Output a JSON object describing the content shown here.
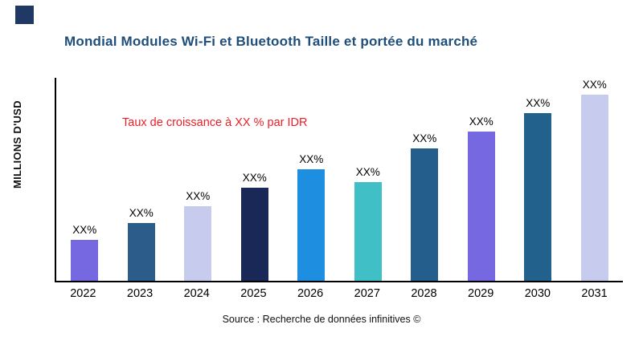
{
  "logo": {
    "color": "#1f3864"
  },
  "header": {
    "title": "Mondial Modules Wi-Fi et Bluetooth Taille et portée du marché",
    "title_color": "#1f4e79"
  },
  "annotation": {
    "text": "Taux de croissance à XX % par IDR",
    "color": "#ee1c25"
  },
  "axis": {
    "y_label": "MILLIONS D'USD"
  },
  "footer": {
    "source": "Source : Recherche de données infinitives ©"
  },
  "chart_data": {
    "type": "bar",
    "title": "Mondial Modules Wi-Fi et Bluetooth Taille et portée du marché",
    "xlabel": "",
    "ylabel": "MILLIONS D'USD",
    "categories": [
      "2022",
      "2023",
      "2024",
      "2025",
      "2026",
      "2027",
      "2028",
      "2029",
      "2030",
      "2031"
    ],
    "values": [
      22,
      31,
      40,
      50,
      60,
      53,
      71,
      80,
      90,
      100
    ],
    "values_note": "relative heights, max bar = 100; no numeric y-axis ticks shown",
    "bar_labels": [
      "XX%",
      "XX%",
      "XX%",
      "XX%",
      "XX%",
      "XX%",
      "XX%",
      "XX%",
      "XX%",
      "XX%"
    ],
    "bar_colors": [
      "#7668e0",
      "#2b5c8a",
      "#c7ccee",
      "#1a2858",
      "#1e8fe0",
      "#41bfc7",
      "#235e8c",
      "#7668e0",
      "#21618c",
      "#c7ccee"
    ],
    "ylim": [
      0,
      100
    ],
    "grid": false,
    "legend": false,
    "annotation": "Taux de croissance à XX % par IDR"
  }
}
